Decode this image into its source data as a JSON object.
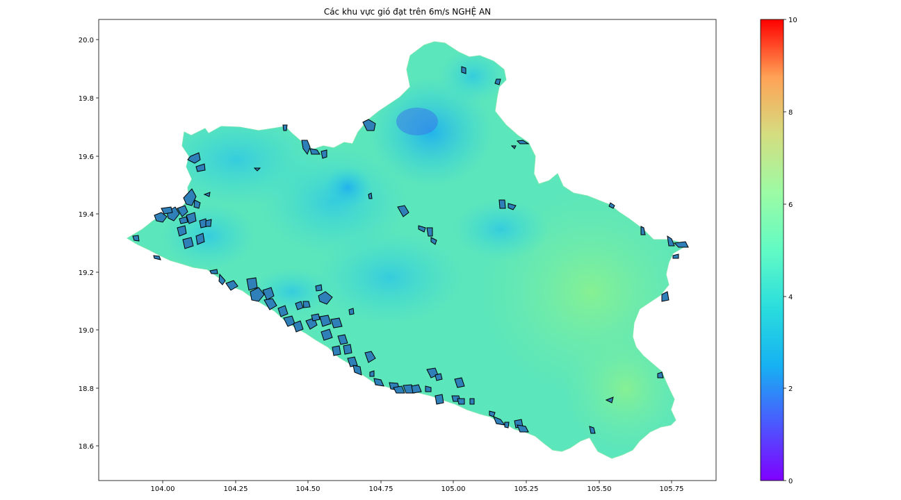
{
  "title": "Các khu vực gió đạt trên 6m/s NGHỆ AN",
  "axes": {
    "x_ticks": [
      "104.00",
      "104.25",
      "104.50",
      "104.75",
      "105.00",
      "105.25",
      "105.50",
      "105.75"
    ],
    "y_ticks": [
      "18.6",
      "18.8",
      "19.0",
      "19.2",
      "19.4",
      "19.6",
      "19.8",
      "20.0"
    ]
  },
  "colorbar": {
    "ticks": [
      "0",
      "2",
      "4",
      "6",
      "8",
      "10"
    ],
    "min": 0,
    "max": 10,
    "colormap": "rainbow"
  },
  "map": {
    "region_fill_low": "#4fd8d0",
    "region_fill_mid": "#62e8b3",
    "region_fill_high": "#86f08f",
    "highlight_fill": "#2f7fb8",
    "highlight_edge": "#000000"
  }
}
